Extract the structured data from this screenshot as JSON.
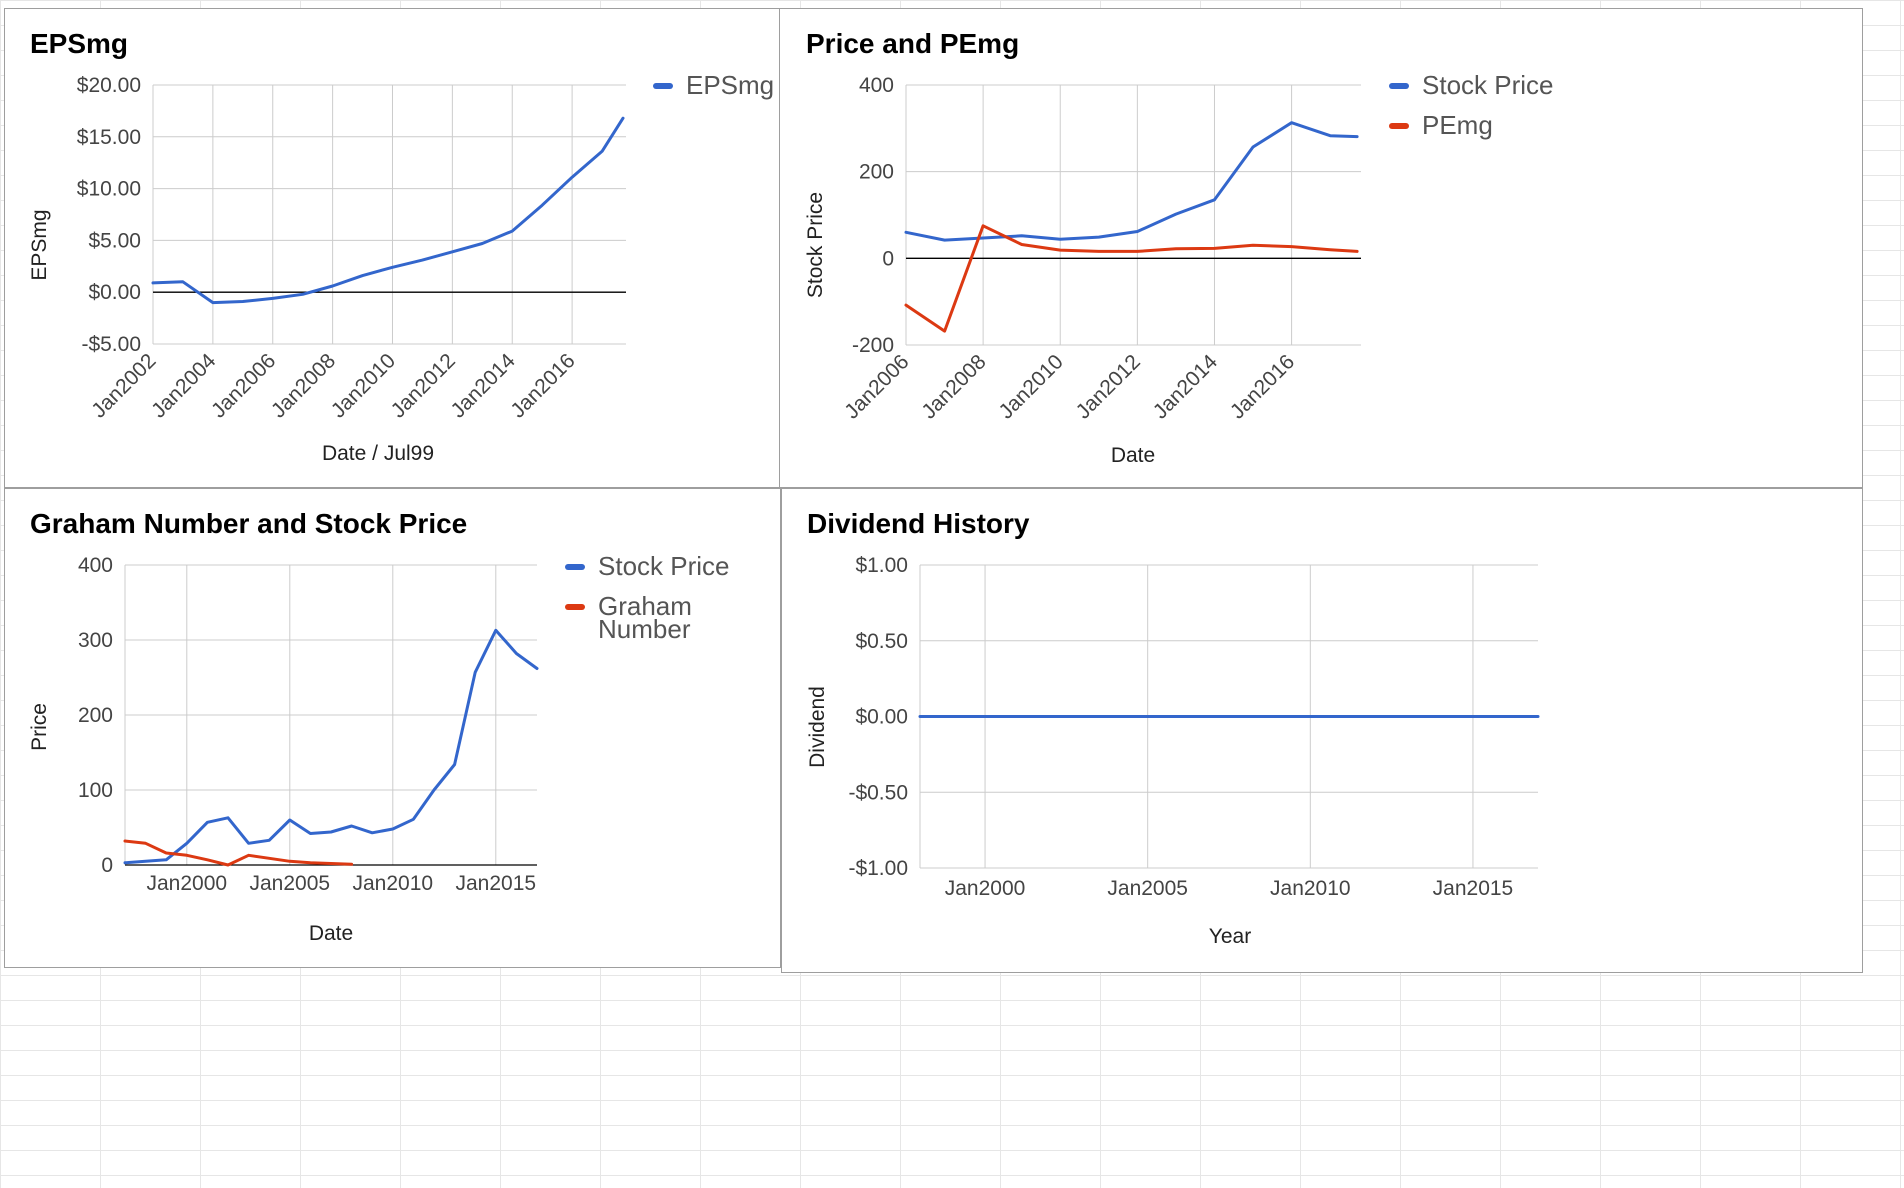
{
  "colors": {
    "blue": "#3366cc",
    "red": "#dc3912",
    "grid": "#cccccc",
    "zero": "#000000"
  },
  "chart_data": [
    {
      "type": "line",
      "title": "EPSmg",
      "xlabel": "Date / Jul99",
      "ylabel": "EPSmg",
      "legend": "right",
      "grid": true,
      "ylim": [
        -5,
        20
      ],
      "yticks": [
        20,
        15,
        10,
        5,
        0,
        -5
      ],
      "ytick_labels": [
        "$20.00",
        "$15.00",
        "$10.00",
        "$5.00",
        "$0.00",
        "-$5.00"
      ],
      "xlim": [
        2002,
        2017.8
      ],
      "xticks": [
        2002,
        2004,
        2006,
        2008,
        2010,
        2012,
        2014,
        2016
      ],
      "xtick_labels": [
        "Jan2002",
        "Jan2004",
        "Jan2006",
        "Jan2008",
        "Jan2010",
        "Jan2012",
        "Jan2014",
        "Jan2016"
      ],
      "series": [
        {
          "name": "EPSmg",
          "color": "blue",
          "x": [
            2002,
            2003,
            2004,
            2005,
            2006,
            2007,
            2008,
            2009,
            2010,
            2011,
            2012,
            2013,
            2014,
            2015,
            2016,
            2017,
            2017.7
          ],
          "y": [
            0.9,
            1.0,
            -1.0,
            -0.9,
            -0.6,
            -0.2,
            0.6,
            1.6,
            2.4,
            3.1,
            3.9,
            4.7,
            5.9,
            8.4,
            11.1,
            13.6,
            16.8
          ]
        }
      ]
    },
    {
      "type": "line",
      "title": "Price and PEmg",
      "xlabel": "Date",
      "ylabel": "Stock Price",
      "legend": "right",
      "grid": true,
      "ylim": [
        -200,
        400
      ],
      "yticks": [
        400,
        200,
        0,
        -200
      ],
      "ytick_labels": [
        "400",
        "200",
        "0",
        "-200"
      ],
      "xlim": [
        2006,
        2017.8
      ],
      "xticks": [
        2006,
        2008,
        2010,
        2012,
        2014,
        2016
      ],
      "xtick_labels": [
        "Jan2006",
        "Jan2008",
        "Jan2010",
        "Jan2012",
        "Jan2014",
        "Jan2016"
      ],
      "series": [
        {
          "name": "Stock Price",
          "color": "blue",
          "x": [
            2006,
            2007,
            2008,
            2009,
            2010,
            2011,
            2012,
            2013,
            2014,
            2015,
            2016,
            2017,
            2017.7
          ],
          "y": [
            60,
            42,
            47,
            52,
            44,
            49,
            62,
            102,
            135,
            257,
            313,
            283,
            281
          ]
        },
        {
          "name": "PEmg",
          "color": "red",
          "x": [
            2006,
            2007,
            2008,
            2009,
            2010,
            2011,
            2012,
            2013,
            2014,
            2015,
            2016,
            2017,
            2017.7
          ],
          "y": [
            -108,
            -168,
            75,
            32,
            19,
            16,
            16,
            22,
            23,
            30,
            27,
            20,
            16
          ]
        }
      ]
    },
    {
      "type": "line",
      "title": "Graham Number and Stock Price",
      "xlabel": "Date",
      "ylabel": "Price",
      "legend": "right",
      "grid": true,
      "ylim": [
        0,
        400
      ],
      "yticks": [
        400,
        300,
        200,
        100,
        0
      ],
      "ytick_labels": [
        "400",
        "300",
        "200",
        "100",
        "0"
      ],
      "xlim": [
        1997,
        2017
      ],
      "xticks": [
        2000,
        2005,
        2010,
        2015
      ],
      "xtick_labels": [
        "Jan2000",
        "Jan2005",
        "Jan2010",
        "Jan2015"
      ],
      "series": [
        {
          "name": "Stock Price",
          "color": "blue",
          "x": [
            1997,
            1998,
            1999,
            2000,
            2001,
            2002,
            2003,
            2004,
            2005,
            2006,
            2007,
            2008,
            2009,
            2010,
            2011,
            2012,
            2013,
            2014,
            2015,
            2016,
            2017
          ],
          "y": [
            3,
            5,
            7,
            29,
            57,
            63,
            29,
            33,
            60,
            42,
            44,
            52,
            43,
            48,
            61,
            100,
            134,
            257,
            313,
            282,
            262
          ]
        },
        {
          "name": "Graham Number",
          "color": "red",
          "x": [
            1997,
            1998,
            1999,
            2000,
            2001,
            2002,
            2003,
            2004,
            2005,
            2006,
            2007,
            2008
          ],
          "y": [
            32,
            29,
            16,
            13,
            7,
            0,
            13,
            9,
            5,
            3,
            2,
            1
          ]
        }
      ]
    },
    {
      "type": "line",
      "title": "Dividend History",
      "xlabel": "Year",
      "ylabel": "Dividend",
      "legend": "none",
      "grid": true,
      "ylim": [
        -1,
        1
      ],
      "yticks": [
        1,
        0.5,
        0,
        -0.5,
        -1
      ],
      "ytick_labels": [
        "$1.00",
        "$0.50",
        "$0.00",
        "-$0.50",
        "-$1.00"
      ],
      "xlim": [
        1998,
        2017
      ],
      "xticks": [
        2000,
        2005,
        2010,
        2015
      ],
      "xtick_labels": [
        "Jan2000",
        "Jan2005",
        "Jan2010",
        "Jan2015"
      ],
      "series": [
        {
          "name": "",
          "color": "blue",
          "x": [
            1998,
            2017
          ],
          "y": [
            0,
            0
          ]
        }
      ]
    }
  ]
}
